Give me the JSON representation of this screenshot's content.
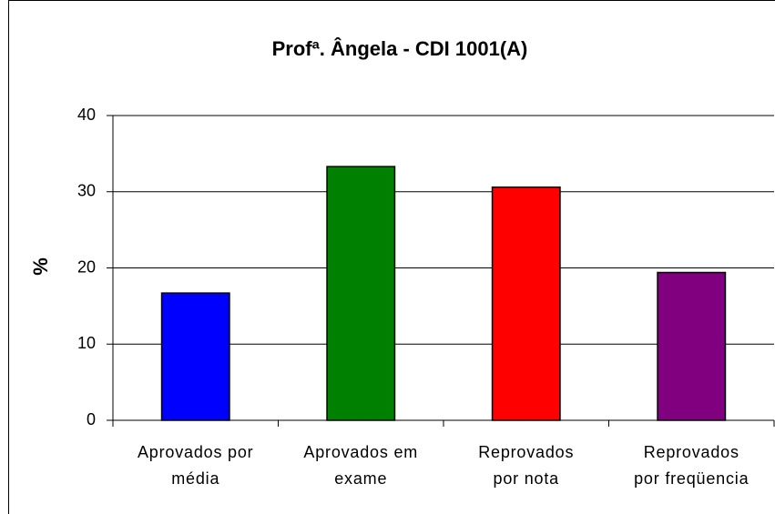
{
  "chart_data": {
    "type": "bar",
    "title": "Profª. Ângela - CDI 1001(A)",
    "ylabel": "%",
    "categories": [
      [
        "Aprovados por",
        "média"
      ],
      [
        "Aprovados em",
        "exame"
      ],
      [
        "Reprovados",
        "por nota"
      ],
      [
        "Reprovados",
        "por freqüencia"
      ]
    ],
    "values": [
      16.7,
      33.3,
      30.6,
      19.4
    ],
    "colors": [
      "#0000ff",
      "#008000",
      "#ff0000",
      "#800080"
    ],
    "ylim": [
      0,
      40
    ],
    "yticks": [
      0,
      10,
      20,
      30,
      40
    ],
    "grid": true
  }
}
